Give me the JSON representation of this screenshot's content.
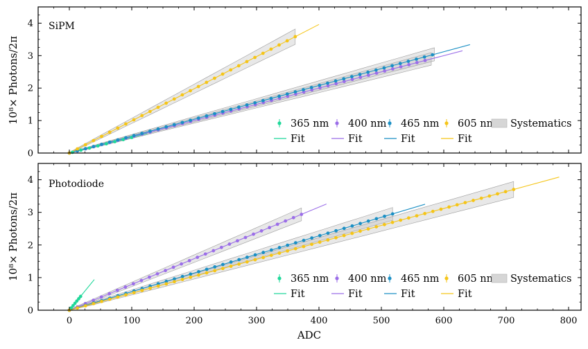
{
  "chart_data": {
    "type": "scatter",
    "xlabel": "ADC",
    "xlim": [
      -50,
      820
    ],
    "xticks": [
      "0",
      "100",
      "200",
      "300",
      "400",
      "500",
      "600",
      "700",
      "800"
    ],
    "ylabel": "10⁸× Photons/2π",
    "ylim": [
      0,
      4.5
    ],
    "yticks": [
      "0",
      "1",
      "2",
      "3",
      "4"
    ],
    "panels": [
      {
        "title": "SiPM",
        "series": [
          {
            "name": "365 nm",
            "color": "#1fd89a",
            "points_x": [
              5,
              100
            ],
            "fit_x": [
              0,
              125
            ],
            "slope": 0.0048,
            "band_x": null
          },
          {
            "name": "400 nm",
            "color": "#9b6ee8",
            "points_x": [
              0,
              570
            ],
            "fit_x": [
              0,
              630
            ],
            "slope": 0.005,
            "band_x": [
              0,
              580
            ]
          },
          {
            "name": "465 nm",
            "color": "#1a8fc4",
            "points_x": [
              0,
              582
            ],
            "fit_x": [
              0,
              642
            ],
            "slope": 0.0052,
            "band_x": [
              0,
              585
            ]
          },
          {
            "name": "605 nm",
            "color": "#f5c518",
            "points_x": [
              0,
              362
            ],
            "fit_x": [
              0,
              400
            ],
            "slope": 0.0099,
            "band_x": [
              0,
              362
            ]
          }
        ],
        "legend": {
          "labels": [
            "365 nm",
            "400 nm",
            "465 nm",
            "605 nm",
            "Systematics"
          ],
          "fit_label": "Fit"
        }
      },
      {
        "title": "Photodiode",
        "series": [
          {
            "name": "365 nm",
            "color": "#1fd89a",
            "points_x": [
              0,
              18
            ],
            "fit_x": [
              0,
              40
            ],
            "slope": 0.0235,
            "band_x": [
              0,
              18
            ]
          },
          {
            "name": "400 nm",
            "color": "#9b6ee8",
            "points_x": [
              0,
              372
            ],
            "fit_x": [
              0,
              412
            ],
            "slope": 0.0079,
            "band_x": [
              0,
              372
            ]
          },
          {
            "name": "465 nm",
            "color": "#1a8fc4",
            "points_x": [
              0,
              518
            ],
            "fit_x": [
              0,
              570
            ],
            "slope": 0.0057,
            "band_x": [
              0,
              518
            ]
          },
          {
            "name": "605 nm",
            "color": "#f5c518",
            "points_x": [
              0,
              712
            ],
            "fit_x": [
              0,
              785
            ],
            "slope": 0.0052,
            "band_x": [
              0,
              712
            ]
          }
        ],
        "legend": {
          "labels": [
            "365 nm",
            "400 nm",
            "465 nm",
            "605 nm",
            "Systematics"
          ],
          "fit_label": "Fit"
        }
      }
    ]
  }
}
